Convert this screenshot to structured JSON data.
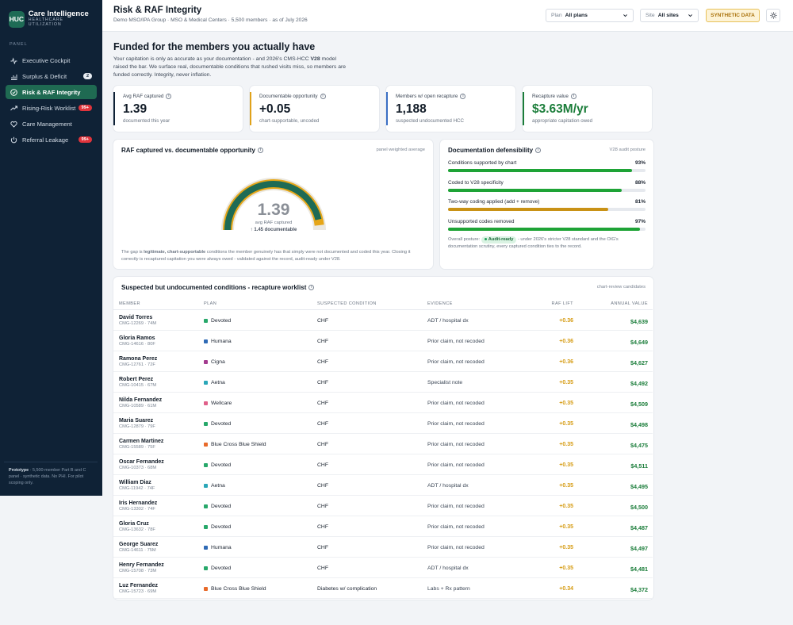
{
  "brand": {
    "logo": "HUC",
    "title": "Care Intelligence",
    "subtitle": "HEALTHCARE UTILIZATION"
  },
  "sidebar": {
    "section_label": "PANEL",
    "items": [
      {
        "label": "Executive Cockpit",
        "icon": "pulse-icon",
        "badge": ""
      },
      {
        "label": "Surplus & Deficit",
        "icon": "bar-chart-icon",
        "badge": "2"
      },
      {
        "label": "Risk & RAF Integrity",
        "icon": "check-circle-icon",
        "badge": "",
        "active": true
      },
      {
        "label": "Rising-Risk Worklist",
        "icon": "trend-up-icon",
        "badge": "99+"
      },
      {
        "label": "Care Management",
        "icon": "heart-icon",
        "badge": ""
      },
      {
        "label": "Referral Leakage",
        "icon": "power-icon",
        "badge": "99+"
      }
    ],
    "footer_bold": "Prototype",
    "footer_text": " · 5,500-member Part B and C panel · synthetic data. No PHI. For pilot scoping only."
  },
  "header": {
    "title": "Risk & RAF Integrity",
    "subtitle": "Demo MSO/IPA Group · MSO & Medical Centers · 5,500 members · as of July 2026",
    "plan_label": "Plan",
    "plan_value": "All plans",
    "site_label": "Site",
    "site_value": "All sites",
    "synthetic_badge": "SYNTHETIC DATA",
    "theme_icon": "sun-icon"
  },
  "hero": {
    "title": "Funded for the members you actually have",
    "text_1": "Your capitation is only as accurate as your documentation - and 2026's CMS-HCC ",
    "text_bold": "V28",
    "text_2": " model raised the bar. We surface real, documentable conditions that rushed visits miss, so members are funded correctly. Integrity, never inflation."
  },
  "kpis": [
    {
      "label": "Avg RAF captured",
      "value": "1.39",
      "sub": "documented this year",
      "color": "#0f2236",
      "value_color": "#111b27"
    },
    {
      "label": "Documentable opportunity",
      "value": "+0.05",
      "sub": "chart-supportable, uncoded",
      "color": "#e0a21a",
      "value_color": "#111b27"
    },
    {
      "label": "Members w/ open recapture",
      "value": "1,188",
      "sub": "suspected undocumented HCC",
      "color": "#3a6fc4",
      "value_color": "#111b27"
    },
    {
      "label": "Recapture value",
      "value": "$3.63M/yr",
      "sub": "appropriate capitation owed",
      "color": "#1b7d3a",
      "value_color": "#1b7d3a"
    }
  ],
  "gauge": {
    "title": "RAF captured vs. documentable opportunity",
    "hint": "panel weighted average",
    "value": "1.39",
    "value_label": "avg RAF captured",
    "target_label": "↑ 1.45 documentable",
    "captured": 1.39,
    "documentable": 1.45,
    "max": 1.5,
    "note_1": "The gap is ",
    "note_bold": "legitimate, chart-supportable",
    "note_2": " conditions the member genuinely has that simply were not documented and coded this year. Closing it correctly is recaptured capitation you were always owed - validated against the record, audit-ready under V28."
  },
  "defensibility": {
    "title": "Documentation defensibility",
    "hint": "V28 audit posture",
    "rows": [
      {
        "label": "Conditions supported by chart",
        "pct": "93%",
        "value": 93,
        "color": "#1ea336"
      },
      {
        "label": "Coded to V28 specificity",
        "pct": "88%",
        "value": 88,
        "color": "#1ea336"
      },
      {
        "label": "Two-way coding applied (add + remove)",
        "pct": "81%",
        "value": 81,
        "color": "#c99216"
      },
      {
        "label": "Unsupported codes removed",
        "pct": "97%",
        "value": 97,
        "color": "#1ea336"
      }
    ],
    "posture_label": "Overall posture:",
    "posture_pill": "Audit-ready",
    "posture_text": " - under 2026's stricter V28 standard and the OIG's documentation scrutiny, every captured condition ties to the record."
  },
  "worklist": {
    "title": "Suspected but undocumented conditions - recapture worklist",
    "hint": "chart-review candidates",
    "columns": [
      "MEMBER",
      "PLAN",
      "SUSPECTED CONDITION",
      "EVIDENCE",
      "RAF LIFT",
      "ANNUAL VALUE"
    ],
    "rows": [
      {
        "name": "David Torres",
        "id": "CMG-12269 · 74M",
        "plan": "Devoted",
        "plan_color": "#27a86a",
        "condition": "CHF",
        "evidence": "ADT / hospital dx",
        "lift": "+0.36",
        "value": "$4,639"
      },
      {
        "name": "Gloria Ramos",
        "id": "CMG-14616 · 80F",
        "plan": "Humana",
        "plan_color": "#2f6ab5",
        "condition": "CHF",
        "evidence": "Prior claim, not recoded",
        "lift": "+0.36",
        "value": "$4,649"
      },
      {
        "name": "Ramona Perez",
        "id": "CMG-12761 · 72F",
        "plan": "Cigna",
        "plan_color": "#a33b8f",
        "condition": "CHF",
        "evidence": "Prior claim, not recoded",
        "lift": "+0.36",
        "value": "$4,627"
      },
      {
        "name": "Robert Perez",
        "id": "CMG-10415 · 67M",
        "plan": "Aetna",
        "plan_color": "#2aa7b8",
        "condition": "CHF",
        "evidence": "Specialist note",
        "lift": "+0.35",
        "value": "$4,492"
      },
      {
        "name": "Nilda Fernandez",
        "id": "CMG-10589 · 61M",
        "plan": "Wellcare",
        "plan_color": "#e0608a",
        "condition": "CHF",
        "evidence": "Prior claim, not recoded",
        "lift": "+0.35",
        "value": "$4,509"
      },
      {
        "name": "Maria Suarez",
        "id": "CMG-12879 · 79F",
        "plan": "Devoted",
        "plan_color": "#27a86a",
        "condition": "CHF",
        "evidence": "Prior claim, not recoded",
        "lift": "+0.35",
        "value": "$4,498"
      },
      {
        "name": "Carmen Martinez",
        "id": "CMG-15589 · 75F",
        "plan": "Blue Cross Blue Shield",
        "plan_color": "#e86a2a",
        "condition": "CHF",
        "evidence": "Prior claim, not recoded",
        "lift": "+0.35",
        "value": "$4,475"
      },
      {
        "name": "Oscar Fernandez",
        "id": "CMG-10373 · 68M",
        "plan": "Devoted",
        "plan_color": "#27a86a",
        "condition": "CHF",
        "evidence": "Prior claim, not recoded",
        "lift": "+0.35",
        "value": "$4,511"
      },
      {
        "name": "William Diaz",
        "id": "CMG-11942 · 74F",
        "plan": "Aetna",
        "plan_color": "#2aa7b8",
        "condition": "CHF",
        "evidence": "ADT / hospital dx",
        "lift": "+0.35",
        "value": "$4,495"
      },
      {
        "name": "Iris Hernandez",
        "id": "CMG-13302 · 74F",
        "plan": "Devoted",
        "plan_color": "#27a86a",
        "condition": "CHF",
        "evidence": "Prior claim, not recoded",
        "lift": "+0.35",
        "value": "$4,500"
      },
      {
        "name": "Gloria Cruz",
        "id": "CMG-13632 · 78F",
        "plan": "Devoted",
        "plan_color": "#27a86a",
        "condition": "CHF",
        "evidence": "Prior claim, not recoded",
        "lift": "+0.35",
        "value": "$4,487"
      },
      {
        "name": "George Suarez",
        "id": "CMG-14611 · 75M",
        "plan": "Humana",
        "plan_color": "#2f6ab5",
        "condition": "CHF",
        "evidence": "Prior claim, not recoded",
        "lift": "+0.35",
        "value": "$4,497"
      },
      {
        "name": "Henry Fernandez",
        "id": "CMG-15708 · 73M",
        "plan": "Devoted",
        "plan_color": "#27a86a",
        "condition": "CHF",
        "evidence": "ADT / hospital dx",
        "lift": "+0.35",
        "value": "$4,481"
      },
      {
        "name": "Luz Fernandez",
        "id": "CMG-15723 · 69M",
        "plan": "Blue Cross Blue Shield",
        "plan_color": "#e86a2a",
        "condition": "Diabetes w/ complication",
        "evidence": "Labs + Rx pattern",
        "lift": "+0.34",
        "value": "$4,372"
      }
    ]
  }
}
